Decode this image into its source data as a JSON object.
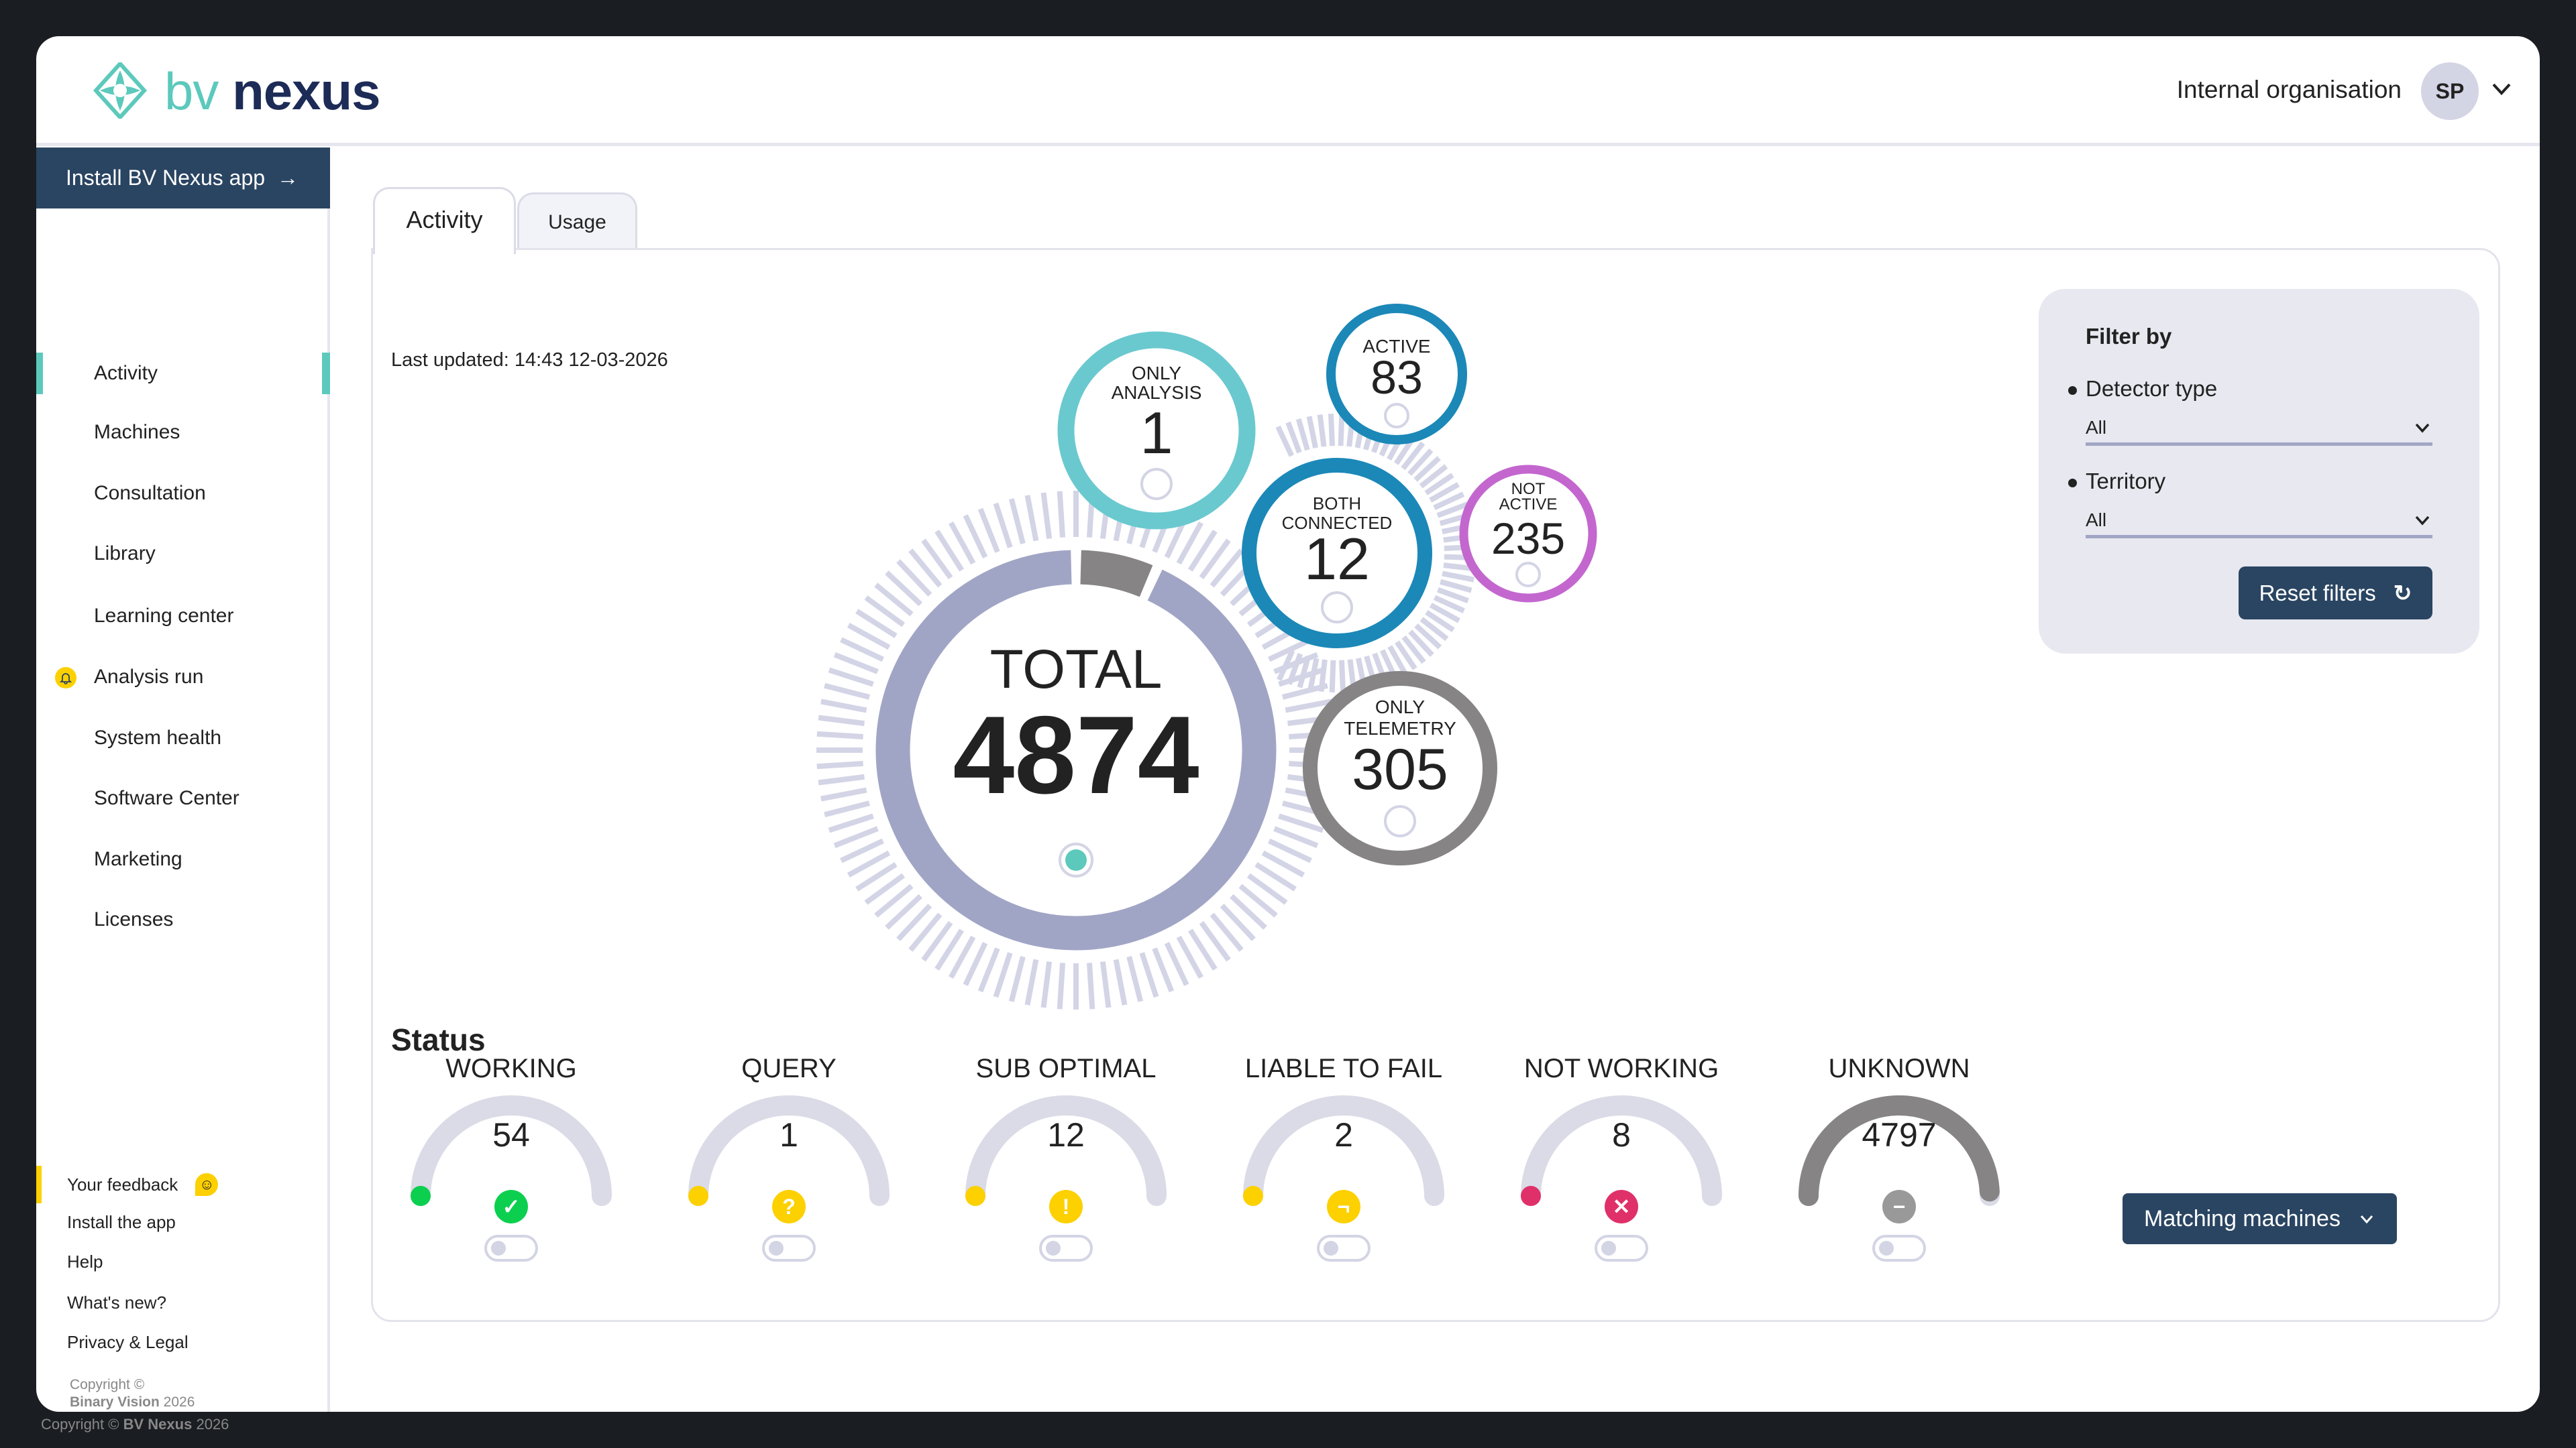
{
  "header": {
    "logo_text_1": "bv",
    "logo_text_2": "nexus",
    "organisation": "Internal organisation",
    "avatar_initials": "SP"
  },
  "sidebar": {
    "install_label": "Install BV Nexus app",
    "items": [
      {
        "label": "Activity",
        "active": true
      },
      {
        "label": "Machines"
      },
      {
        "label": "Consultation"
      },
      {
        "label": "Library"
      },
      {
        "label": "Learning center"
      },
      {
        "label": "Analysis run",
        "icon": "bell-icon"
      },
      {
        "label": "System health"
      },
      {
        "label": "Software Center"
      },
      {
        "label": "Marketing"
      },
      {
        "label": "Licenses"
      }
    ],
    "footer_links": [
      "Your feedback",
      "Install the app",
      "Help",
      "What's new?",
      "Privacy & Legal"
    ],
    "copyright_line1": "Copyright ©",
    "copyright_brand": "Binary Vision",
    "copyright_year": "2026"
  },
  "outer_footer": {
    "prefix": "Copyright ©",
    "brand": "BV Nexus",
    "year": "2026"
  },
  "tabs": [
    {
      "label": "Activity",
      "active": true
    },
    {
      "label": "Usage"
    }
  ],
  "last_updated": "Last updated: 14:43 12-03-2026",
  "activity": {
    "total_label": "TOTAL",
    "total": 4874,
    "bubbles": [
      {
        "lines": [
          "ONLY",
          "ANALYSIS"
        ],
        "value": 1,
        "color": "#6ac9cf"
      },
      {
        "lines": [
          "ACTIVE"
        ],
        "value": 83,
        "color": "#1b88b8"
      },
      {
        "lines": [
          "BOTH",
          "CONNECTED"
        ],
        "value": 12,
        "color": "#1b88b8"
      },
      {
        "lines": [
          "NOT",
          "ACTIVE"
        ],
        "value": 235,
        "color": "#c367cf"
      },
      {
        "lines": [
          "ONLY",
          "TELEMETRY"
        ],
        "value": 305,
        "color": "#878485"
      }
    ],
    "ring_color": "#a1a5c5",
    "tick_color": "#d3d5e6"
  },
  "filter": {
    "title": "Filter by",
    "detector_label": "Detector type",
    "detector_value": "All",
    "territory_label": "Territory",
    "territory_value": "All",
    "reset_label": "Reset filters"
  },
  "status": {
    "title": "Status",
    "items": [
      {
        "label": "WORKING",
        "value": 54,
        "color": "#0ccf4f",
        "icon": "check-icon",
        "glyph": "✓"
      },
      {
        "label": "QUERY",
        "value": 1,
        "color": "#fdd000",
        "icon": "question-icon",
        "glyph": "?"
      },
      {
        "label": "SUB OPTIMAL",
        "value": 12,
        "color": "#fdd000",
        "icon": "exclamation-icon",
        "glyph": "!"
      },
      {
        "label": "LIABLE TO FAIL",
        "value": 2,
        "color": "#fdd000",
        "icon": "corner-icon",
        "glyph": "¬"
      },
      {
        "label": "NOT WORKING",
        "value": 8,
        "color": "#e0306a",
        "icon": "cross-icon",
        "glyph": "✕"
      },
      {
        "label": "UNKNOWN",
        "value": 4797,
        "color": "#878485",
        "icon": "minus-icon",
        "glyph": "−"
      }
    ],
    "matching_label": "Matching machines"
  }
}
